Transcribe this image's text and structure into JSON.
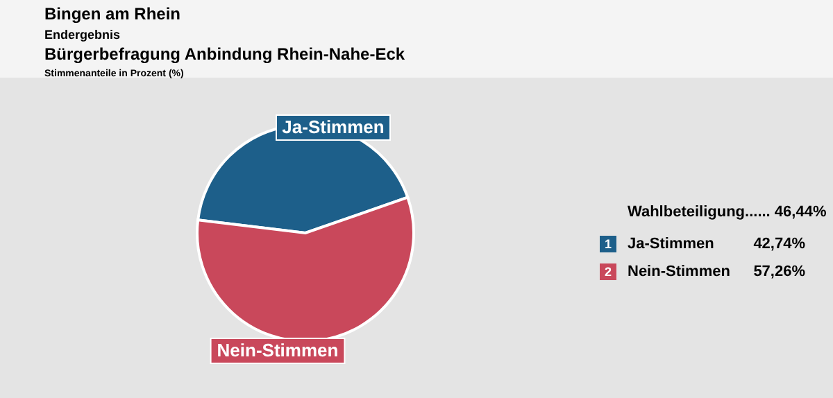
{
  "chart_data": {
    "type": "pie",
    "title": "Bingen am Rhein",
    "subtitle": "Endergebnis",
    "annotations": [
      "Bürgerbefragung Anbindung Rhein-Nahe-Eck",
      "Stimmenanteile in Prozent (%)",
      "Wahlbeteiligung...... 46,44%",
      "1",
      "2"
    ],
    "categories": [
      "Ja-Stimmen",
      "Nein-Stimmen"
    ],
    "values": [
      42.74,
      57.26
    ],
    "colors": [
      "#1d5f8a",
      "#c9485b"
    ],
    "value_labels": [
      "42,74%",
      "57,26%"
    ],
    "legend": "right"
  }
}
